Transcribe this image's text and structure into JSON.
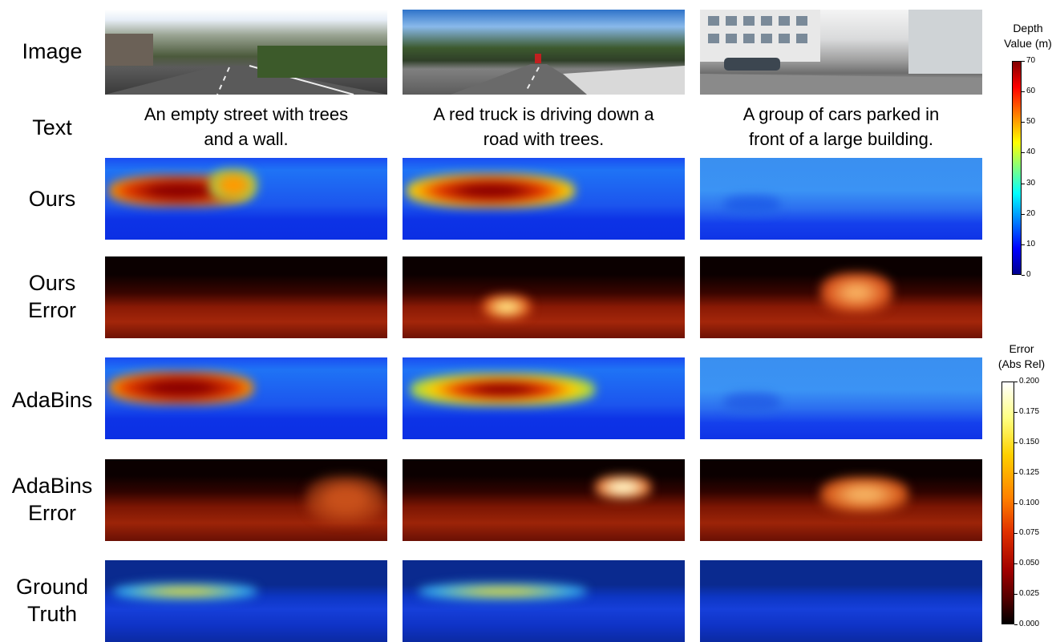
{
  "rows": {
    "image": "Image",
    "text": "Text",
    "ours": "Ours",
    "ours_error_1": "Ours",
    "ours_error_2": "Error",
    "adabins": "AdaBins",
    "adabins_error_1": "AdaBins",
    "adabins_error_2": "Error",
    "ground_truth_1": "Ground",
    "ground_truth_2": "Truth"
  },
  "captions": {
    "col1_line1": "An empty street with trees",
    "col1_line2": "and a wall.",
    "col2_line1": "A red truck is driving down a",
    "col2_line2": "road with trees.",
    "col3_line1": "A group of cars parked in",
    "col3_line2": "front of a large building."
  },
  "depth_colorbar": {
    "title_line1": "Depth",
    "title_line2": "Value (m)",
    "ticks": [
      "70",
      "60",
      "50",
      "40",
      "30",
      "20",
      "10",
      "0"
    ]
  },
  "error_colorbar": {
    "title_line1": "Error",
    "title_line2": "(Abs Rel)",
    "ticks": [
      "0.200",
      "0.175",
      "0.150",
      "0.125",
      "0.100",
      "0.075",
      "0.050",
      "0.025",
      "0.000"
    ]
  }
}
